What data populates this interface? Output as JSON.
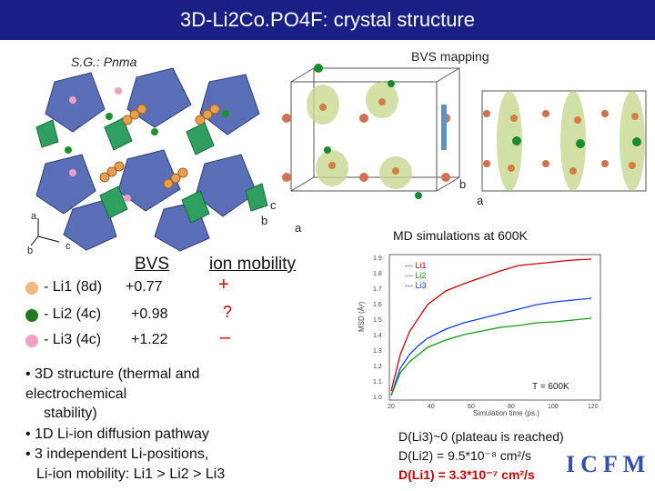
{
  "title": "3D-Li2Co.PO4F: crystal structure",
  "sg_label": "S.G.: Pnma",
  "bvs_mapping_label": "BVS mapping",
  "axis_labels": {
    "a": "a",
    "b": "b",
    "c": "c"
  },
  "md_title": "MD simulations at 600K",
  "chart": {
    "xlabel": "Simulation time (ps.)",
    "ylabel": "MSD (Å²)",
    "x_ticks": [
      "20",
      "40",
      "60",
      "80",
      "100",
      "120"
    ],
    "y_ticks": [
      "1.9",
      "1.8",
      "1.7",
      "1.6",
      "1.5",
      "1.4",
      "1.3",
      "1.2",
      "1.1",
      "1.0"
    ],
    "legend": [
      "--- Li1",
      "--- Li2",
      "--- Li3"
    ],
    "temp_label": "T = 600K"
  },
  "table": {
    "headers": [
      "BVS",
      "ion mobility"
    ],
    "rows": [
      {
        "label": "- Li1  (8d)",
        "bvs": "+0.77",
        "mobility": "+",
        "color": "#f2b880"
      },
      {
        "label": "- Li2  (4c)",
        "bvs": "+0.98",
        "mobility": "?",
        "color": "#1f7a1f"
      },
      {
        "label": "- Li3  (4c)",
        "bvs": "+1.22",
        "mobility": "–",
        "color": "#f0a0c0"
      }
    ]
  },
  "bullets": {
    "b1_line1": "• 3D structure (thermal and",
    "b1_line2": "electrochemical",
    "b1_line3": "stability)",
    "b2": "• 1D Li-ion diffusion pathway",
    "b3": "• 3 independent Li-positions,",
    "b3_line2": "Li-ion mobility:  Li1  >  Li2  > Li3"
  },
  "diffusion": {
    "line1": "D(Li3)~0 (plateau is reached)",
    "line2": "D(Li2) = 9.5*10⁻⁸ cm²/s",
    "line3": "D(Li1) = 3.3*10⁻⁷ cm²/s"
  },
  "logo_text": "ICFM",
  "colors": {
    "title_bg": "#1a1f86",
    "red": "#d00000",
    "green": "#2a9a2a"
  }
}
